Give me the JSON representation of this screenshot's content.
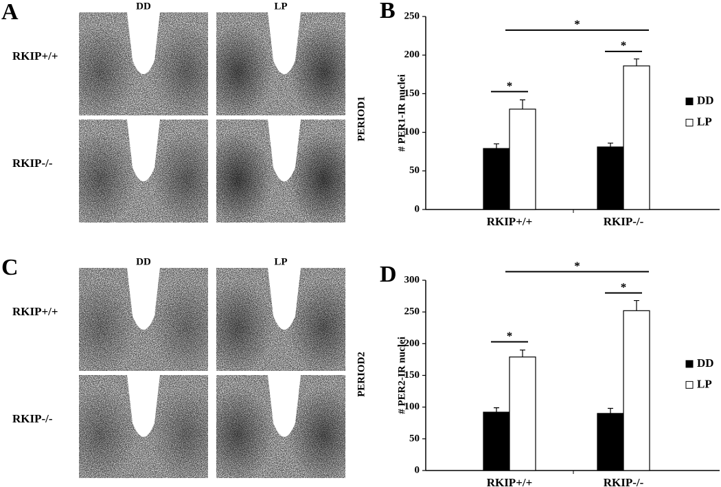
{
  "figure": {
    "panels": [
      {
        "letter": "A",
        "columns": [
          "DD",
          "LP"
        ],
        "rows": [
          "RKIP+/+",
          "RKIP-/-"
        ],
        "stain": "PERIOD1"
      },
      {
        "letter": "C",
        "columns": [
          "DD",
          "LP"
        ],
        "rows": [
          "RKIP+/+",
          "RKIP-/-"
        ],
        "stain": "PERIOD2"
      }
    ]
  },
  "chart_data": [
    {
      "type": "bar",
      "letter": "B",
      "ylabel": "# PER1-IR nuclei",
      "categories": [
        "RKIP+/+",
        "RKIP-/-"
      ],
      "series": [
        {
          "name": "DD",
          "color": "#000000",
          "values": [
            79,
            81
          ],
          "errors": [
            6,
            5
          ]
        },
        {
          "name": "LP",
          "color": "#ffffff",
          "values": [
            130,
            186
          ],
          "errors": [
            12,
            9
          ]
        }
      ],
      "ylim": [
        0,
        250
      ],
      "yticks": [
        0,
        50,
        100,
        150,
        200,
        250
      ],
      "annotations": [
        "*",
        "*",
        "*"
      ],
      "legend": "right"
    },
    {
      "type": "bar",
      "letter": "D",
      "ylabel": "# PER2-IR nuclei",
      "categories": [
        "RKIP+/+",
        "RKIP-/-"
      ],
      "series": [
        {
          "name": "DD",
          "color": "#000000",
          "values": [
            92,
            90
          ],
          "errors": [
            7,
            8
          ]
        },
        {
          "name": "LP",
          "color": "#ffffff",
          "values": [
            179,
            252
          ],
          "errors": [
            11,
            16
          ]
        }
      ],
      "ylim": [
        0,
        300
      ],
      "yticks": [
        0,
        50,
        100,
        150,
        200,
        250,
        300
      ],
      "annotations": [
        "*",
        "*",
        "*"
      ],
      "legend": "right"
    }
  ]
}
